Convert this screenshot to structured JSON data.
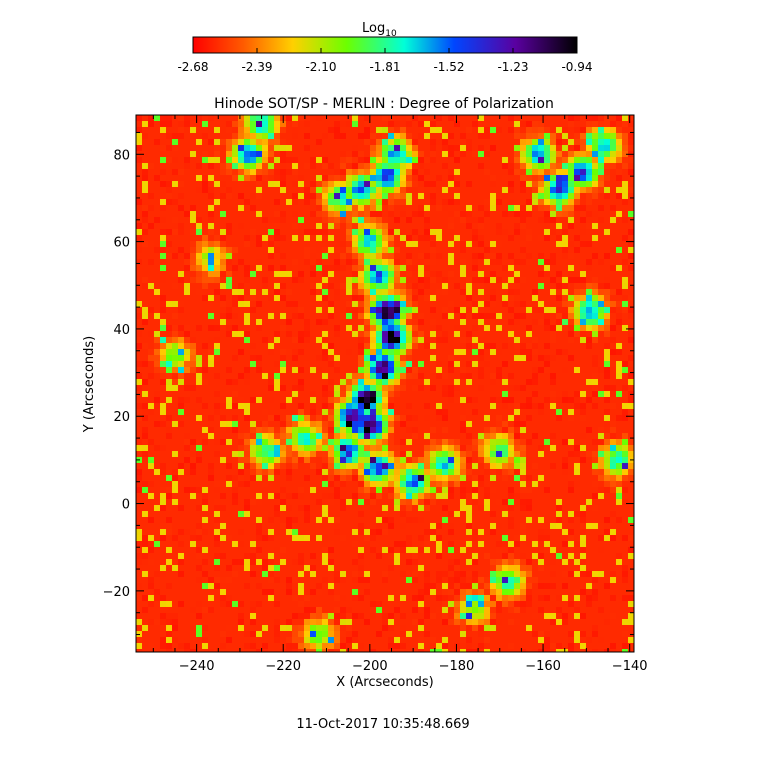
{
  "colorbar": {
    "title": "Log",
    "title_sub": "10",
    "ticks": [
      "-2.68",
      "-2.39",
      "-2.10",
      "-1.81",
      "-1.52",
      "-1.23",
      "-0.94"
    ],
    "range": [
      -2.68,
      -0.94
    ],
    "colormap": "rainbow (red → yellow → green → cyan → blue → purple → black)"
  },
  "chart_data": {
    "type": "heatmap",
    "title": "Hinode SOT/SP - MERLIN : Degree of Polarization",
    "xlabel": "X (Arcseconds)",
    "ylabel": "Y (Arcseconds)",
    "xlim": [
      -254,
      -139
    ],
    "ylim": [
      -34,
      89
    ],
    "xticks": [
      -240,
      -220,
      -200,
      -180,
      -160,
      -140
    ],
    "yticks": [
      -20,
      0,
      20,
      40,
      60,
      80
    ],
    "value_range": [
      -2.68,
      -0.94
    ],
    "value_label": "Log10 degree of polarization",
    "background_level": -2.65,
    "features": [
      {
        "x": -196,
        "y": 44,
        "level": -0.94
      },
      {
        "x": -195,
        "y": 38,
        "level": -0.98
      },
      {
        "x": -197,
        "y": 31,
        "level": -1.08
      },
      {
        "x": -201,
        "y": 24,
        "level": -1.05
      },
      {
        "x": -200,
        "y": 18,
        "level": -1.0
      },
      {
        "x": -204,
        "y": 20,
        "level": -1.12
      },
      {
        "x": -205,
        "y": 12,
        "level": -1.4
      },
      {
        "x": -198,
        "y": 8,
        "level": -1.45
      },
      {
        "x": -190,
        "y": 5,
        "level": -1.5
      },
      {
        "x": -183,
        "y": 9,
        "level": -1.65
      },
      {
        "x": -215,
        "y": 15,
        "level": -1.7
      },
      {
        "x": -224,
        "y": 12,
        "level": -1.75
      },
      {
        "x": -198,
        "y": 52,
        "level": -1.45
      },
      {
        "x": -200,
        "y": 60,
        "level": -1.6
      },
      {
        "x": -196,
        "y": 75,
        "level": -1.35
      },
      {
        "x": -202,
        "y": 72,
        "level": -1.45
      },
      {
        "x": -207,
        "y": 70,
        "level": -1.7
      },
      {
        "x": -194,
        "y": 80,
        "level": -1.55
      },
      {
        "x": -228,
        "y": 80,
        "level": -1.5
      },
      {
        "x": -225,
        "y": 87,
        "level": -1.6
      },
      {
        "x": -156,
        "y": 72,
        "level": -1.35
      },
      {
        "x": -151,
        "y": 76,
        "level": -1.4
      },
      {
        "x": -161,
        "y": 80,
        "level": -1.55
      },
      {
        "x": -146,
        "y": 82,
        "level": -1.6
      },
      {
        "x": -149,
        "y": 44,
        "level": -1.55
      },
      {
        "x": -170,
        "y": 12,
        "level": -1.8
      },
      {
        "x": -168,
        "y": -18,
        "level": -1.7
      },
      {
        "x": -176,
        "y": -24,
        "level": -1.9
      },
      {
        "x": -212,
        "y": -30,
        "level": -1.9
      },
      {
        "x": -143,
        "y": 10,
        "level": -1.7
      },
      {
        "x": -245,
        "y": 34,
        "level": -1.95
      },
      {
        "x": -237,
        "y": 56,
        "level": -2.0
      }
    ]
  },
  "footer": {
    "timestamp": "11-Oct-2017 10:35:48.669"
  }
}
